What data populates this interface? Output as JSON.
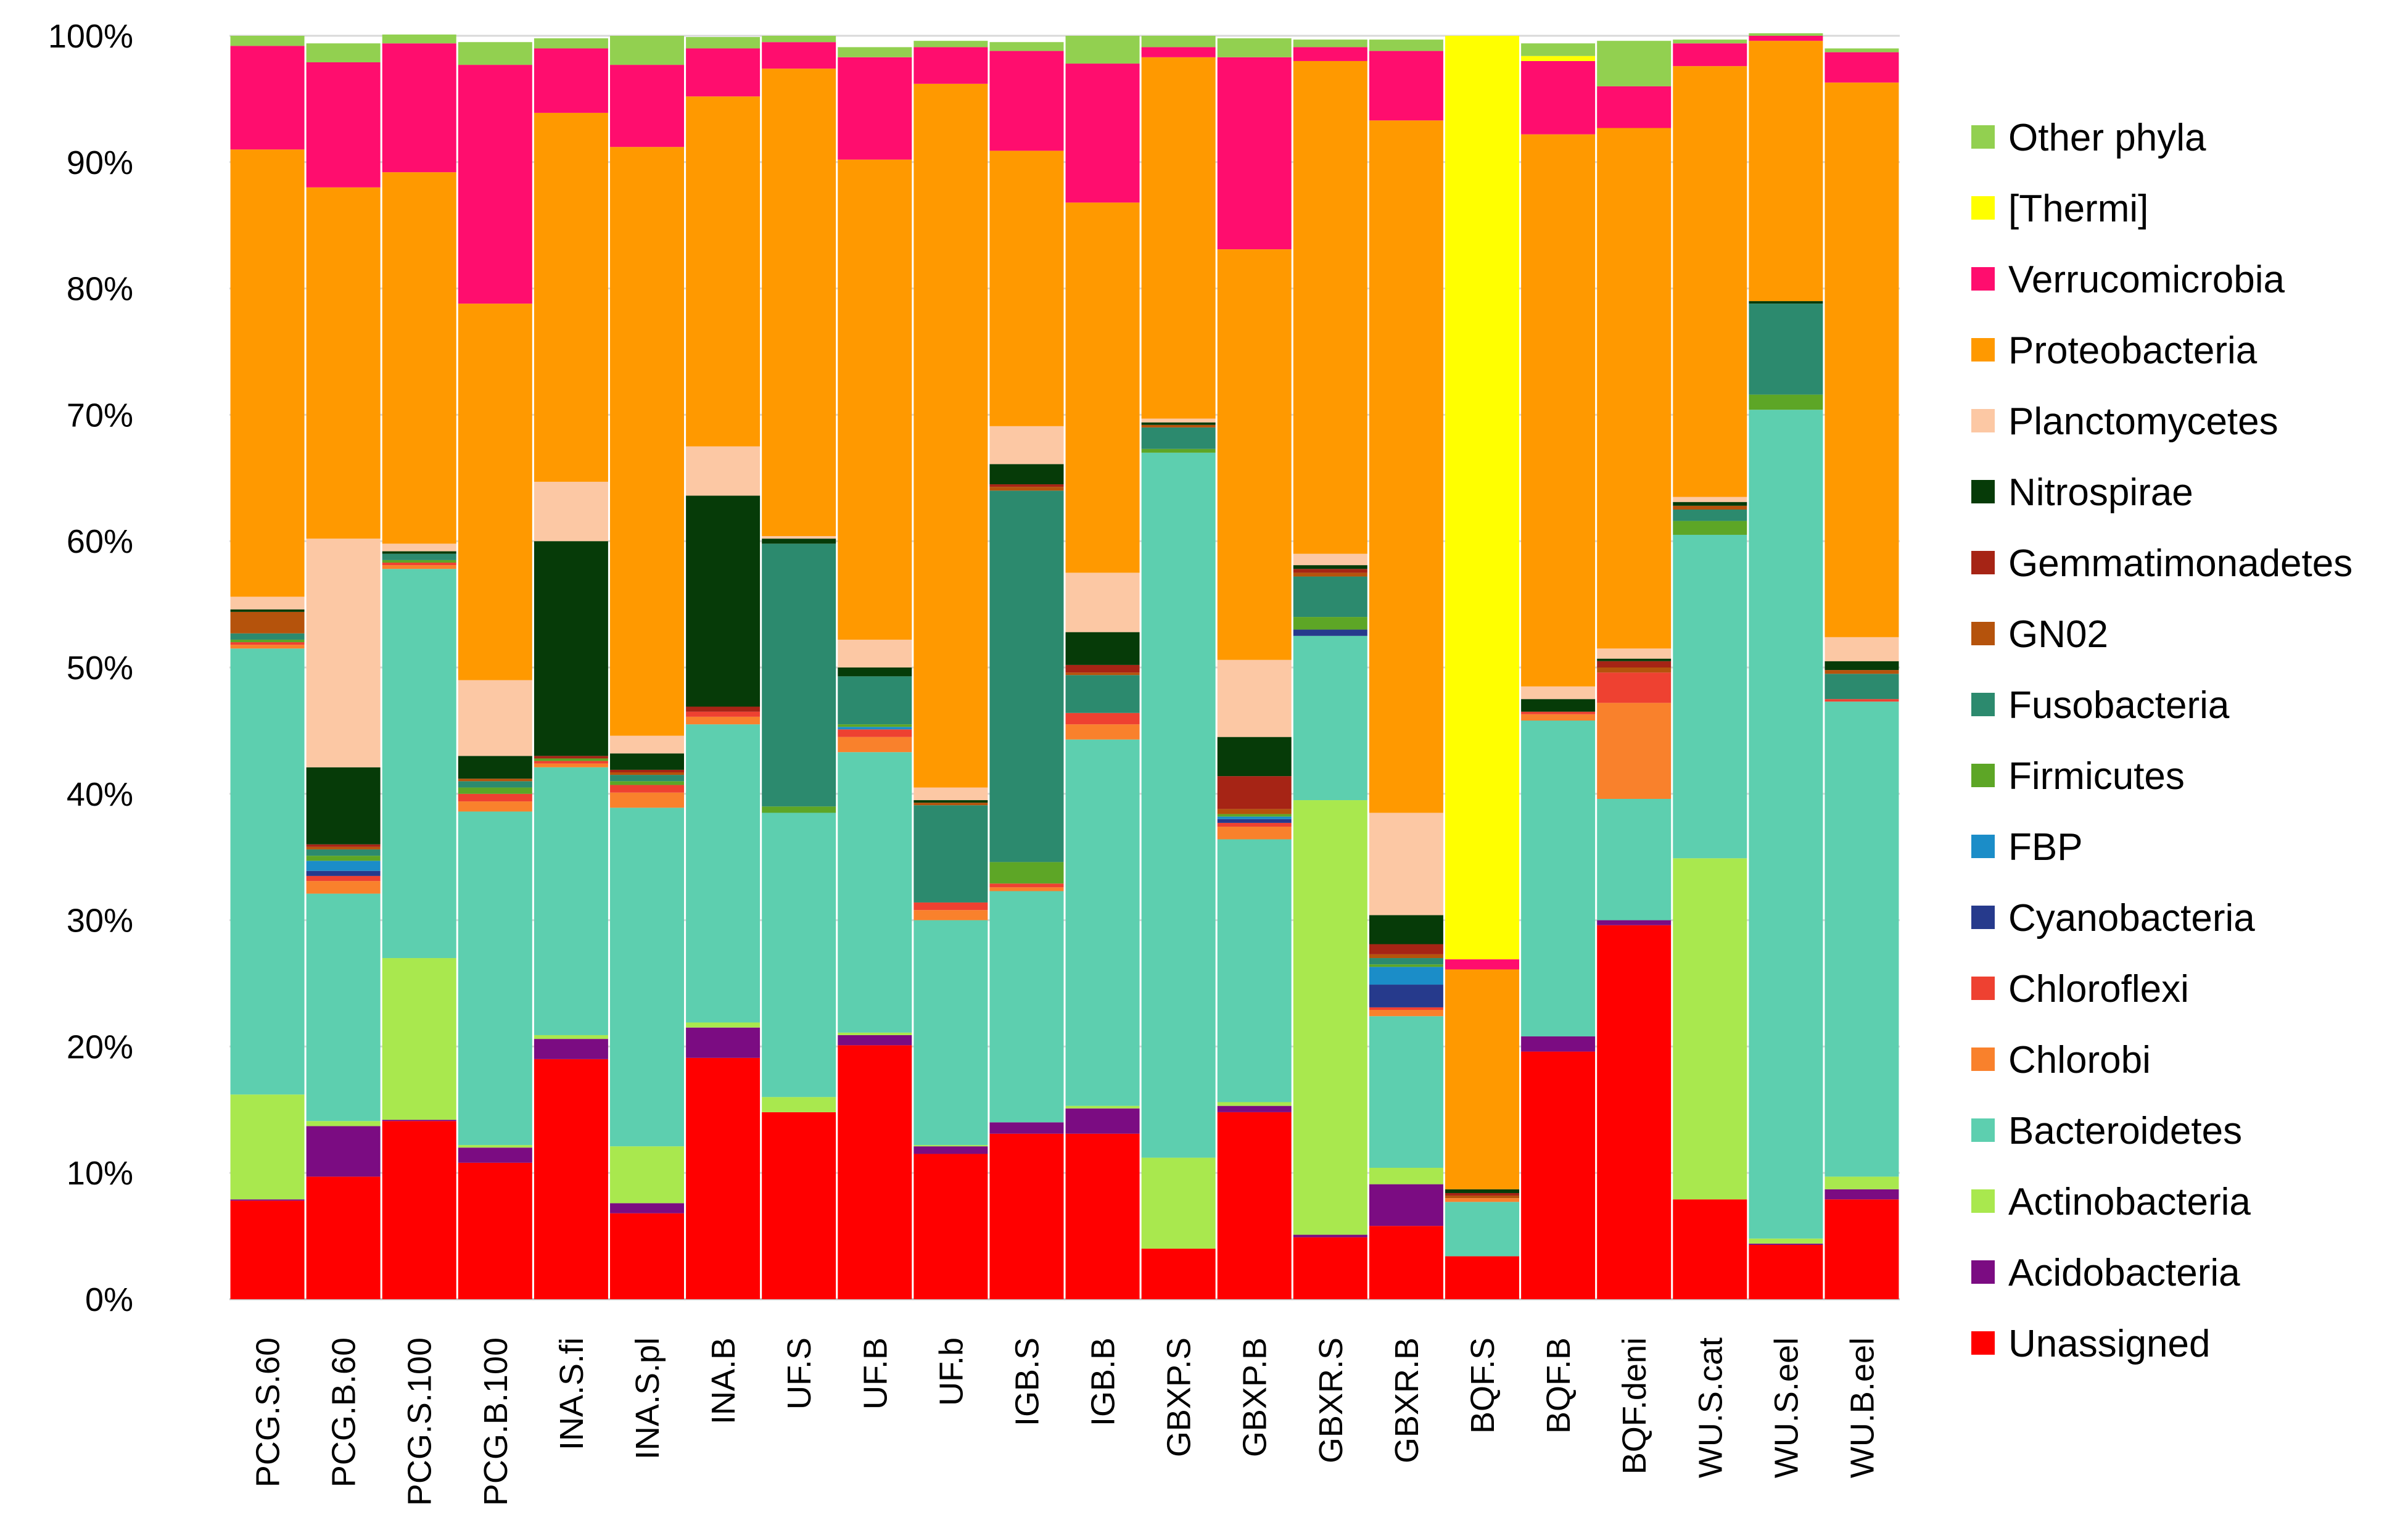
{
  "chart_data": {
    "type": "bar",
    "stacked": true,
    "percent": true,
    "title": "",
    "xlabel": "",
    "ylabel": "",
    "ylim": [
      0,
      100
    ],
    "y_ticks": [
      "0%",
      "10%",
      "20%",
      "30%",
      "40%",
      "50%",
      "60%",
      "70%",
      "80%",
      "90%",
      "100%"
    ],
    "grid": "horizontal",
    "legend_position": "right",
    "categories": [
      "PCG.S.60",
      "PCG.B.60",
      "PCG.S.100",
      "PCG.B.100",
      "INA.S.fi",
      "INA.S.pl",
      "INA.B",
      "UF.S",
      "UF.B",
      "UF.b",
      "IGB.S",
      "IGB.B",
      "GBXP.S",
      "GBXP.B",
      "GBXR.S",
      "GBXR.B",
      "BQF.S",
      "BQF.B",
      "BQF.deni",
      "WU.S.cat",
      "WU.S.eel",
      "WU.B.eel"
    ],
    "series": [
      {
        "name": "Unassigned",
        "color": "#FF0000",
        "values": [
          7.8,
          9.7,
          14.1,
          10.8,
          19.0,
          6.8,
          19.1,
          14.8,
          20.1,
          11.5,
          13.1,
          13.1,
          4.0,
          14.8,
          4.9,
          5.8,
          3.4,
          19.6,
          29.6,
          7.9,
          4.3,
          7.9
        ]
      },
      {
        "name": "Acidobacteria",
        "color": "#7B0C82",
        "values": [
          0.1,
          4.0,
          0.1,
          1.2,
          1.6,
          0.8,
          2.4,
          0.0,
          0.8,
          0.6,
          0.9,
          2.0,
          0.0,
          0.5,
          0.2,
          3.3,
          0.0,
          1.2,
          0.4,
          0.0,
          0.1,
          0.8
        ]
      },
      {
        "name": "Actinobacteria",
        "color": "#A9E84E",
        "values": [
          8.3,
          0.4,
          12.8,
          0.2,
          0.3,
          4.5,
          0.4,
          1.2,
          0.2,
          0.1,
          0.0,
          0.2,
          7.2,
          0.3,
          34.4,
          1.3,
          0.0,
          0.0,
          0.0,
          27.0,
          0.4,
          1.0
        ]
      },
      {
        "name": "Bacteroidetes",
        "color": "#5DCFAF",
        "values": [
          35.3,
          18.0,
          30.8,
          26.4,
          21.2,
          26.8,
          23.6,
          22.5,
          22.2,
          17.8,
          18.3,
          29.0,
          55.8,
          20.8,
          13.0,
          12.0,
          4.3,
          25.0,
          9.6,
          25.6,
          65.6,
          37.6
        ]
      },
      {
        "name": "Chlorobi",
        "color": "#F9812C",
        "values": [
          0.3,
          1.0,
          0.3,
          0.8,
          0.3,
          1.2,
          0.6,
          0.0,
          1.2,
          0.8,
          0.3,
          1.2,
          0.0,
          1.0,
          0.0,
          0.5,
          0.3,
          0.5,
          7.6,
          0.0,
          0.0,
          0.0
        ]
      },
      {
        "name": "Chloroflexi",
        "color": "#EE4131",
        "values": [
          0.2,
          0.4,
          0.2,
          0.6,
          0.2,
          0.6,
          0.4,
          0.0,
          0.6,
          0.6,
          0.3,
          0.9,
          0.0,
          0.3,
          0.0,
          0.2,
          0.0,
          0.2,
          2.4,
          0.0,
          0.0,
          0.2
        ]
      },
      {
        "name": "Cyanobacteria",
        "color": "#263A8C",
        "values": [
          0.0,
          0.4,
          0.0,
          0.0,
          0.0,
          0.0,
          0.0,
          0.0,
          0.0,
          0.0,
          0.0,
          0.0,
          0.0,
          0.3,
          0.5,
          1.8,
          0.0,
          0.0,
          0.0,
          0.0,
          0.0,
          0.0
        ]
      },
      {
        "name": "FBP",
        "color": "#1B8DC8",
        "values": [
          0.0,
          0.8,
          0.0,
          0.0,
          0.0,
          0.0,
          0.0,
          0.0,
          0.2,
          0.0,
          0.0,
          0.0,
          0.0,
          0.2,
          0.0,
          1.4,
          0.0,
          0.0,
          0.0,
          0.0,
          0.0,
          0.0
        ]
      },
      {
        "name": "Firmicutes",
        "color": "#5DA626",
        "values": [
          0.2,
          0.4,
          0.2,
          0.5,
          0.2,
          0.3,
          0.0,
          0.5,
          0.2,
          0.0,
          1.7,
          0.0,
          0.3,
          0.2,
          1.0,
          0.2,
          0.0,
          0.0,
          0.0,
          1.1,
          1.2,
          0.0
        ]
      },
      {
        "name": "Fusobacteria",
        "color": "#2C8A6E",
        "values": [
          0.5,
          0.5,
          0.5,
          0.5,
          0.0,
          0.5,
          0.0,
          20.8,
          3.8,
          7.7,
          29.4,
          3.0,
          1.7,
          0.0,
          3.2,
          0.5,
          0.0,
          0.0,
          0.0,
          0.9,
          7.2,
          2.0
        ]
      },
      {
        "name": "GN02",
        "color": "#B5530C",
        "values": [
          1.7,
          0.2,
          0.0,
          0.2,
          0.0,
          0.2,
          0.0,
          0.0,
          0.0,
          0.2,
          0.3,
          0.2,
          0.2,
          0.4,
          0.3,
          0.3,
          0.2,
          0.0,
          0.4,
          0.3,
          0.0,
          0.3
        ]
      },
      {
        "name": "Gemmatimonadetes",
        "color": "#A62415",
        "values": [
          0.0,
          0.2,
          0.0,
          0.0,
          0.2,
          0.2,
          0.4,
          0.0,
          0.0,
          0.0,
          0.2,
          0.6,
          0.0,
          2.6,
          0.3,
          0.8,
          0.2,
          0.0,
          0.5,
          0.0,
          0.0,
          0.0
        ]
      },
      {
        "name": "Nitrospirae",
        "color": "#063B08",
        "values": [
          0.2,
          6.1,
          0.2,
          1.8,
          17.0,
          1.3,
          16.7,
          0.4,
          0.7,
          0.2,
          1.6,
          2.6,
          0.2,
          3.1,
          0.3,
          2.3,
          0.3,
          1.0,
          0.2,
          0.3,
          0.2,
          0.7
        ]
      },
      {
        "name": "Planctomycetes",
        "color": "#FCC8A4",
        "values": [
          1.0,
          18.1,
          0.6,
          6.0,
          4.7,
          1.4,
          3.9,
          0.2,
          2.2,
          1.0,
          3.0,
          4.7,
          0.3,
          6.1,
          0.9,
          8.1,
          0.0,
          1.0,
          0.8,
          0.4,
          0.0,
          1.9
        ]
      },
      {
        "name": "Proteobacteria",
        "color": "#FF9900",
        "values": [
          35.4,
          27.8,
          29.4,
          29.8,
          29.2,
          46.6,
          27.7,
          37.0,
          38.0,
          55.7,
          21.8,
          29.3,
          28.6,
          32.5,
          39.0,
          54.8,
          17.4,
          43.7,
          41.2,
          34.1,
          20.6,
          43.9
        ]
      },
      {
        "name": "Verrucomicrobia",
        "color": "#FF0D6E",
        "values": [
          8.2,
          9.9,
          10.2,
          18.9,
          5.1,
          6.5,
          3.8,
          2.1,
          8.1,
          2.9,
          7.9,
          11.0,
          0.8,
          15.2,
          1.1,
          5.5,
          0.8,
          5.8,
          3.3,
          1.8,
          0.4,
          2.4
        ]
      },
      {
        "name": "[Thermi]",
        "color": "#FFFF00",
        "values": [
          0.0,
          0.0,
          0.0,
          0.0,
          0.0,
          0.0,
          0.0,
          0.0,
          0.0,
          0.0,
          0.0,
          0.0,
          0.0,
          0.0,
          0.0,
          0.0,
          73.1,
          0.4,
          0.0,
          0.0,
          0.0,
          0.0
        ]
      },
      {
        "name": "Other phyla",
        "color": "#92D050",
        "values": [
          0.8,
          1.5,
          0.7,
          1.8,
          0.8,
          2.3,
          0.9,
          0.5,
          0.8,
          0.5,
          0.7,
          2.2,
          0.9,
          1.5,
          0.6,
          0.9,
          0.0,
          1.0,
          3.6,
          0.3,
          0.2,
          0.3
        ]
      }
    ]
  }
}
